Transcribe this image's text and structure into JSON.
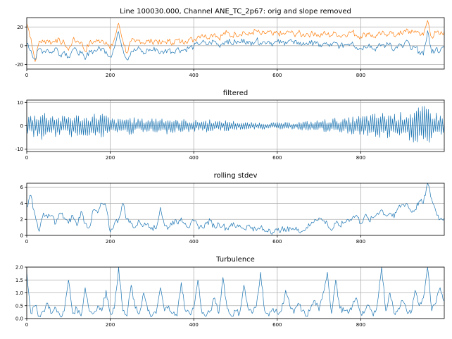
{
  "figure": {
    "background": "#ffffff"
  },
  "chart_data": [
    {
      "type": "line",
      "title": "Line 100030.000, Channel ANE_TC_2p67: orig and slope removed",
      "xlim": [
        0,
        1000
      ],
      "ylim": [
        -25,
        30
      ],
      "xticks": [
        0,
        200,
        400,
        600,
        800
      ],
      "yticks": [
        -20,
        0,
        20
      ],
      "grid": true,
      "series": [
        {
          "color": "#ff7f0e",
          "x": [
            0,
            10,
            20,
            30,
            40,
            50,
            60,
            70,
            80,
            90,
            100,
            110,
            120,
            130,
            140,
            150,
            160,
            170,
            180,
            190,
            200,
            210,
            220,
            230,
            240,
            250,
            260,
            270,
            280,
            290,
            300,
            310,
            320,
            330,
            340,
            350,
            360,
            370,
            380,
            390,
            400,
            410,
            420,
            430,
            440,
            450,
            460,
            470,
            480,
            490,
            500,
            510,
            520,
            530,
            540,
            550,
            560,
            570,
            580,
            590,
            600,
            610,
            620,
            630,
            640,
            650,
            660,
            670,
            680,
            690,
            700,
            710,
            720,
            730,
            740,
            750,
            760,
            770,
            780,
            790,
            800,
            810,
            820,
            830,
            840,
            850,
            860,
            870,
            880,
            890,
            900,
            910,
            920,
            930,
            940,
            950,
            960,
            970,
            980,
            990,
            1000
          ],
          "y": [
            24,
            8,
            -17,
            5,
            4,
            6,
            3,
            7,
            4,
            3,
            -5,
            6,
            5,
            4,
            -6,
            3,
            4,
            5,
            6,
            4,
            -4,
            7,
            24,
            6,
            -8,
            5,
            4,
            6,
            3,
            5,
            4,
            6,
            2,
            4,
            5,
            3,
            6,
            4,
            5,
            7,
            6,
            10,
            12,
            9,
            11,
            13,
            8,
            12,
            14,
            10,
            13,
            12,
            15,
            11,
            14,
            16,
            12,
            13,
            15,
            11,
            14,
            12,
            13,
            15,
            12,
            14,
            11,
            13,
            12,
            14,
            10,
            13,
            12,
            11,
            14,
            10,
            12,
            13,
            15,
            11,
            10,
            12,
            14,
            9,
            11,
            13,
            12,
            15,
            10,
            14,
            12,
            18,
            13,
            16,
            14,
            11,
            27,
            9,
            14,
            12,
            15
          ]
        },
        {
          "color": "#1f77b4",
          "x": [
            0,
            10,
            20,
            30,
            40,
            50,
            60,
            70,
            80,
            90,
            100,
            110,
            120,
            130,
            140,
            150,
            160,
            170,
            180,
            190,
            200,
            210,
            220,
            230,
            240,
            250,
            260,
            270,
            280,
            290,
            300,
            310,
            320,
            330,
            340,
            350,
            360,
            370,
            380,
            390,
            400,
            410,
            420,
            430,
            440,
            450,
            460,
            470,
            480,
            490,
            500,
            510,
            520,
            530,
            540,
            550,
            560,
            570,
            580,
            590,
            600,
            610,
            620,
            630,
            640,
            650,
            660,
            670,
            680,
            690,
            700,
            710,
            720,
            730,
            740,
            750,
            760,
            770,
            780,
            790,
            800,
            810,
            820,
            830,
            840,
            850,
            860,
            870,
            880,
            890,
            900,
            910,
            920,
            930,
            940,
            950,
            960,
            970,
            980,
            990,
            1000
          ],
          "y": [
            2,
            -5,
            -15,
            -3,
            -6,
            -4,
            -8,
            -2,
            -10,
            -6,
            -12,
            -4,
            -6,
            -8,
            -15,
            -5,
            -6,
            -4,
            -3,
            -6,
            -12,
            -2,
            15,
            -3,
            -15,
            -6,
            -5,
            -3,
            -9,
            -4,
            -5,
            -3,
            -8,
            -6,
            -4,
            -7,
            -3,
            -5,
            -4,
            -2,
            -1,
            2,
            4,
            1,
            3,
            5,
            0,
            3,
            6,
            2,
            4,
            3,
            7,
            2,
            4,
            6,
            3,
            4,
            5,
            2,
            4,
            3,
            4,
            6,
            2,
            4,
            1,
            3,
            2,
            5,
            -1,
            2,
            1,
            0,
            3,
            -1,
            1,
            2,
            4,
            -2,
            -3,
            -1,
            2,
            -4,
            -2,
            1,
            0,
            3,
            -5,
            1,
            -2,
            6,
            -4,
            -2,
            -6,
            -10,
            16,
            -8,
            -3,
            -6,
            -2
          ]
        }
      ]
    },
    {
      "type": "line",
      "title": "filtered",
      "xlim": [
        0,
        1000
      ],
      "ylim": [
        -11,
        11
      ],
      "xticks": [
        0,
        200,
        400,
        600,
        800
      ],
      "yticks": [
        -10,
        0,
        10
      ],
      "grid": true,
      "series": [
        {
          "color": "#1f77b4",
          "envelope": [
            [
              0,
              4.5
            ],
            [
              20,
              5.5
            ],
            [
              40,
              6.5
            ],
            [
              60,
              5.5
            ],
            [
              80,
              4
            ],
            [
              100,
              5
            ],
            [
              120,
              5
            ],
            [
              140,
              4
            ],
            [
              160,
              5.5
            ],
            [
              180,
              6
            ],
            [
              200,
              3.5
            ],
            [
              220,
              3
            ],
            [
              240,
              4
            ],
            [
              260,
              3.5
            ],
            [
              280,
              3
            ],
            [
              300,
              3.5
            ],
            [
              320,
              4
            ],
            [
              340,
              3.5
            ],
            [
              360,
              2.5
            ],
            [
              380,
              3
            ],
            [
              400,
              2.5
            ],
            [
              420,
              2.5
            ],
            [
              440,
              3
            ],
            [
              460,
              2
            ],
            [
              480,
              2.5
            ],
            [
              500,
              2
            ],
            [
              520,
              1.5
            ],
            [
              540,
              1.5
            ],
            [
              560,
              1.5
            ],
            [
              580,
              1.5
            ],
            [
              600,
              1.5
            ],
            [
              620,
              1.5
            ],
            [
              640,
              1.5
            ],
            [
              660,
              2
            ],
            [
              680,
              2
            ],
            [
              700,
              2.5
            ],
            [
              720,
              3
            ],
            [
              740,
              3.5
            ],
            [
              760,
              3
            ],
            [
              780,
              4
            ],
            [
              800,
              4.5
            ],
            [
              820,
              5
            ],
            [
              840,
              5.5
            ],
            [
              860,
              6
            ],
            [
              880,
              5.5
            ],
            [
              900,
              6
            ],
            [
              920,
              7
            ],
            [
              940,
              8
            ],
            [
              960,
              9
            ],
            [
              980,
              6
            ],
            [
              1000,
              4
            ]
          ]
        }
      ]
    },
    {
      "type": "line",
      "title": "rolling stdev",
      "xlim": [
        0,
        1000
      ],
      "ylim": [
        0,
        6.5
      ],
      "xticks": [
        0,
        200,
        400,
        600,
        800
      ],
      "yticks": [
        0,
        2,
        4,
        6
      ],
      "grid": true,
      "series": [
        {
          "color": "#1f77b4",
          "x": [
            0,
            10,
            20,
            30,
            40,
            50,
            60,
            70,
            80,
            90,
            100,
            110,
            120,
            130,
            140,
            150,
            160,
            170,
            180,
            190,
            200,
            210,
            220,
            230,
            240,
            250,
            260,
            270,
            280,
            290,
            300,
            310,
            320,
            330,
            340,
            350,
            360,
            370,
            380,
            390,
            400,
            410,
            420,
            430,
            440,
            450,
            460,
            470,
            480,
            490,
            500,
            510,
            520,
            530,
            540,
            550,
            560,
            570,
            580,
            590,
            600,
            610,
            620,
            630,
            640,
            650,
            660,
            670,
            680,
            690,
            700,
            710,
            720,
            730,
            740,
            750,
            760,
            770,
            780,
            790,
            800,
            810,
            820,
            830,
            840,
            850,
            860,
            870,
            880,
            890,
            900,
            910,
            920,
            930,
            940,
            950,
            960,
            970,
            980,
            990,
            1000
          ],
          "y": [
            3.5,
            5,
            2.5,
            0.5,
            2.8,
            2.2,
            2.5,
            1.5,
            2.8,
            2.2,
            1.5,
            2.5,
            1.2,
            3,
            1.5,
            1,
            3.2,
            2.8,
            4,
            3.5,
            0.4,
            1.5,
            2,
            4,
            2,
            1.5,
            1,
            1.8,
            1.2,
            1.5,
            1,
            0.8,
            3.5,
            1.2,
            1,
            1.8,
            1.5,
            2.2,
            1.5,
            1,
            1.8,
            1.2,
            1,
            1.5,
            1.8,
            1,
            1.5,
            1.2,
            0.8,
            1.5,
            1,
            1.3,
            0.8,
            1.2,
            1,
            0.6,
            1,
            0.5,
            0.8,
            0.4,
            0.6,
            0.8,
            0.5,
            1,
            0.7,
            0.8,
            0.5,
            1,
            1.3,
            2,
            2.2,
            1.8,
            1.5,
            0.6,
            1.5,
            1.2,
            1.6,
            2,
            2.2,
            2.5,
            1.5,
            2.5,
            1.8,
            2.2,
            2.8,
            3.2,
            2.5,
            2.8,
            2.2,
            3.5,
            3.8,
            4,
            3,
            3.2,
            4.3,
            4,
            6.5,
            4.5,
            3,
            2,
            2.2
          ]
        }
      ]
    },
    {
      "type": "line",
      "title": "Turbulence",
      "xlim": [
        0,
        1000
      ],
      "ylim": [
        0,
        2.0
      ],
      "xticks": [
        0,
        200,
        400,
        600,
        800
      ],
      "yticks": [
        0.0,
        0.5,
        1.0,
        1.5,
        2.0
      ],
      "ytick_labels": [
        "0.0",
        "0.5",
        "1.0",
        "1.5",
        "2.0"
      ],
      "grid": true,
      "series": [
        {
          "color": "#1f77b4",
          "x": [
            0,
            10,
            20,
            30,
            40,
            50,
            60,
            70,
            80,
            90,
            100,
            110,
            120,
            130,
            140,
            150,
            160,
            170,
            180,
            190,
            200,
            210,
            220,
            230,
            240,
            250,
            260,
            270,
            280,
            290,
            300,
            310,
            320,
            330,
            340,
            350,
            360,
            370,
            380,
            390,
            400,
            410,
            420,
            430,
            440,
            450,
            460,
            470,
            480,
            490,
            500,
            510,
            520,
            530,
            540,
            550,
            560,
            570,
            580,
            590,
            600,
            610,
            620,
            630,
            640,
            650,
            660,
            670,
            680,
            690,
            700,
            710,
            720,
            730,
            740,
            750,
            760,
            770,
            780,
            790,
            800,
            810,
            820,
            830,
            840,
            850,
            860,
            870,
            880,
            890,
            900,
            910,
            920,
            930,
            940,
            950,
            960,
            970,
            980,
            990,
            1000
          ],
          "y": [
            1.8,
            0.2,
            0.5,
            0.1,
            0.3,
            0.6,
            0.2,
            0.4,
            0.1,
            0.3,
            1.5,
            0.2,
            0.4,
            0.1,
            1.2,
            0.3,
            0.2,
            0.5,
            0.3,
            1.1,
            0.2,
            0.4,
            2.0,
            0.3,
            0.1,
            1.3,
            0.4,
            0.2,
            1.0,
            0.3,
            0.1,
            0.2,
            1.2,
            0.3,
            0.5,
            0.2,
            0.1,
            1.4,
            0.3,
            0.2,
            0.4,
            1.5,
            0.2,
            0.1,
            0.3,
            0.8,
            0.2,
            1.6,
            0.4,
            0.1,
            0.3,
            0.2,
            1.3,
            0.4,
            0.2,
            0.5,
            1.8,
            0.3,
            0.1,
            0.4,
            0.2,
            0.3,
            1.1,
            0.5,
            0.2,
            0.6,
            0.3,
            0.1,
            0.4,
            0.7,
            0.3,
            1.0,
            1.8,
            0.2,
            1.5,
            0.4,
            0.3,
            0.2,
            0.5,
            0.8,
            0.2,
            0.3,
            0.5,
            0.1,
            0.6,
            2.0,
            0.3,
            1.0,
            0.2,
            0.4,
            0.7,
            0.3,
            0.2,
            1.1,
            0.5,
            0.8,
            2.0,
            0.3,
            0.6,
            1.2,
            0.7
          ]
        }
      ]
    }
  ]
}
